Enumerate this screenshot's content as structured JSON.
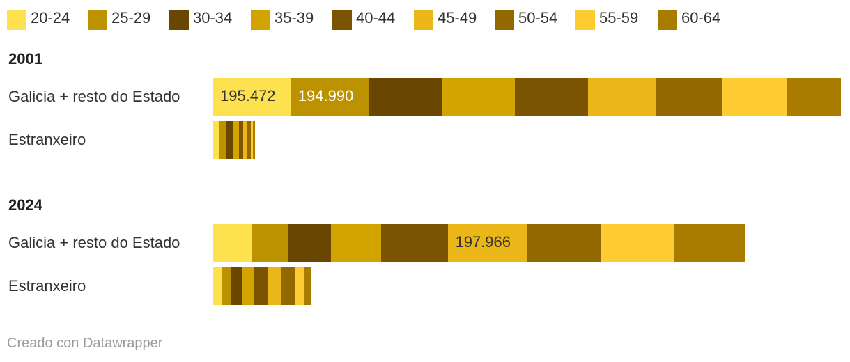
{
  "chart_data": {
    "type": "bar",
    "orientation": "horizontal",
    "stacked": true,
    "legend_position": "top",
    "grid": false,
    "categories": [
      "20-24",
      "25-29",
      "30-34",
      "35-39",
      "40-44",
      "45-49",
      "50-54",
      "55-59",
      "60-64"
    ],
    "colors": [
      "#fee14f",
      "#bd9200",
      "#694700",
      "#d3a400",
      "#7a5400",
      "#ebb617",
      "#916900",
      "#fecb32",
      "#a97c00"
    ],
    "groups": [
      {
        "title": "2001",
        "rows": [
          {
            "label": "Galicia + resto do Estado",
            "values": [
              195472,
              194990,
              183000,
              183000,
              185000,
              168000,
              168000,
              162000,
              136000
            ],
            "value_labels": [
              "195.472",
              "194.990",
              "",
              "",
              "",
              "",
              "",
              "",
              ""
            ]
          },
          {
            "label": "Estranxeiro",
            "values": [
              14000,
              18000,
              18000,
              14000,
              12000,
              10000,
              8000,
              6000,
              5000
            ],
            "value_labels": [
              "",
              "",
              "",
              "",
              "",
              "",
              "",
              "",
              ""
            ]
          }
        ]
      },
      {
        "title": "2024",
        "rows": [
          {
            "label": "Galicia + resto do Estado",
            "values": [
              98000,
              91000,
              106000,
              127000,
              168000,
              197966,
              185000,
              183000,
              180000
            ],
            "value_labels": [
              "",
              "",
              "",
              "",
              "",
              "197.966",
              "",
              "",
              ""
            ]
          },
          {
            "label": "Estranxeiro",
            "values": [
              21000,
              25000,
              28000,
              28000,
              35000,
              32000,
              35000,
              23000,
              17000
            ],
            "value_labels": [
              "",
              "",
              "",
              "",
              "",
              "",
              "",
              "",
              ""
            ]
          }
        ]
      }
    ],
    "xlim": [
      0,
      1577000
    ]
  },
  "footer": "Creado con Datawrapper"
}
